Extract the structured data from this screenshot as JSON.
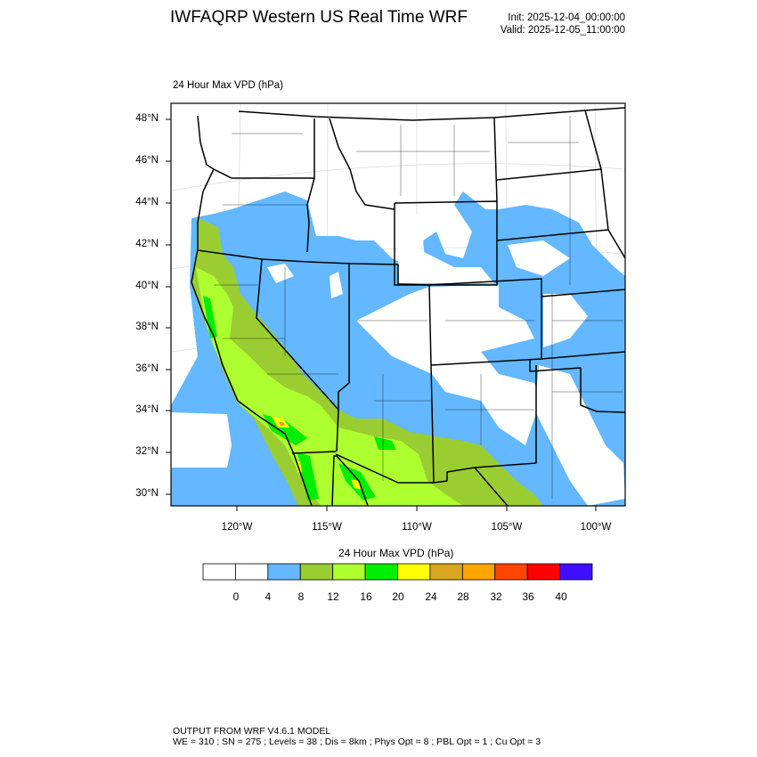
{
  "header": {
    "title": "IWFAQRP Western US Real Time WRF",
    "init": "Init: 2025-12-04_00:00:00",
    "valid": "Valid: 2025-12-05_11:00:00"
  },
  "map": {
    "subtitle": "24 Hour Max VPD   (hPa)",
    "variable": "24 Hour Max VPD",
    "units": "hPa",
    "lat_labels": [
      "48°N",
      "46°N",
      "44°N",
      "42°N",
      "40°N",
      "38°N",
      "36°N",
      "34°N",
      "32°N",
      "30°N"
    ],
    "lon_labels": [
      "120°W",
      "115°W",
      "110°W",
      "105°W",
      "100°W"
    ]
  },
  "colorbar": {
    "title": "24 Hour Max VPD  (hPa)",
    "labels": [
      "0",
      "4",
      "8",
      "12",
      "16",
      "20",
      "24",
      "28",
      "32",
      "36",
      "40"
    ],
    "colors": [
      "#ffffff",
      "#ffffff",
      "#63b8ff",
      "#9acd32",
      "#adff2f",
      "#00ee00",
      "#ffff00",
      "#daa520",
      "#ffa500",
      "#ff4500",
      "#ff0000",
      "#3f0fff"
    ]
  },
  "footer": {
    "line1": "OUTPUT FROM WRF V4.6.1 MODEL",
    "line2": "WE = 310 ; SN = 275 ; Levels = 38 ; Dis = 8km ; Phys Opt = 8 ; PBL Opt = 1 ; Cu Opt = 3"
  }
}
